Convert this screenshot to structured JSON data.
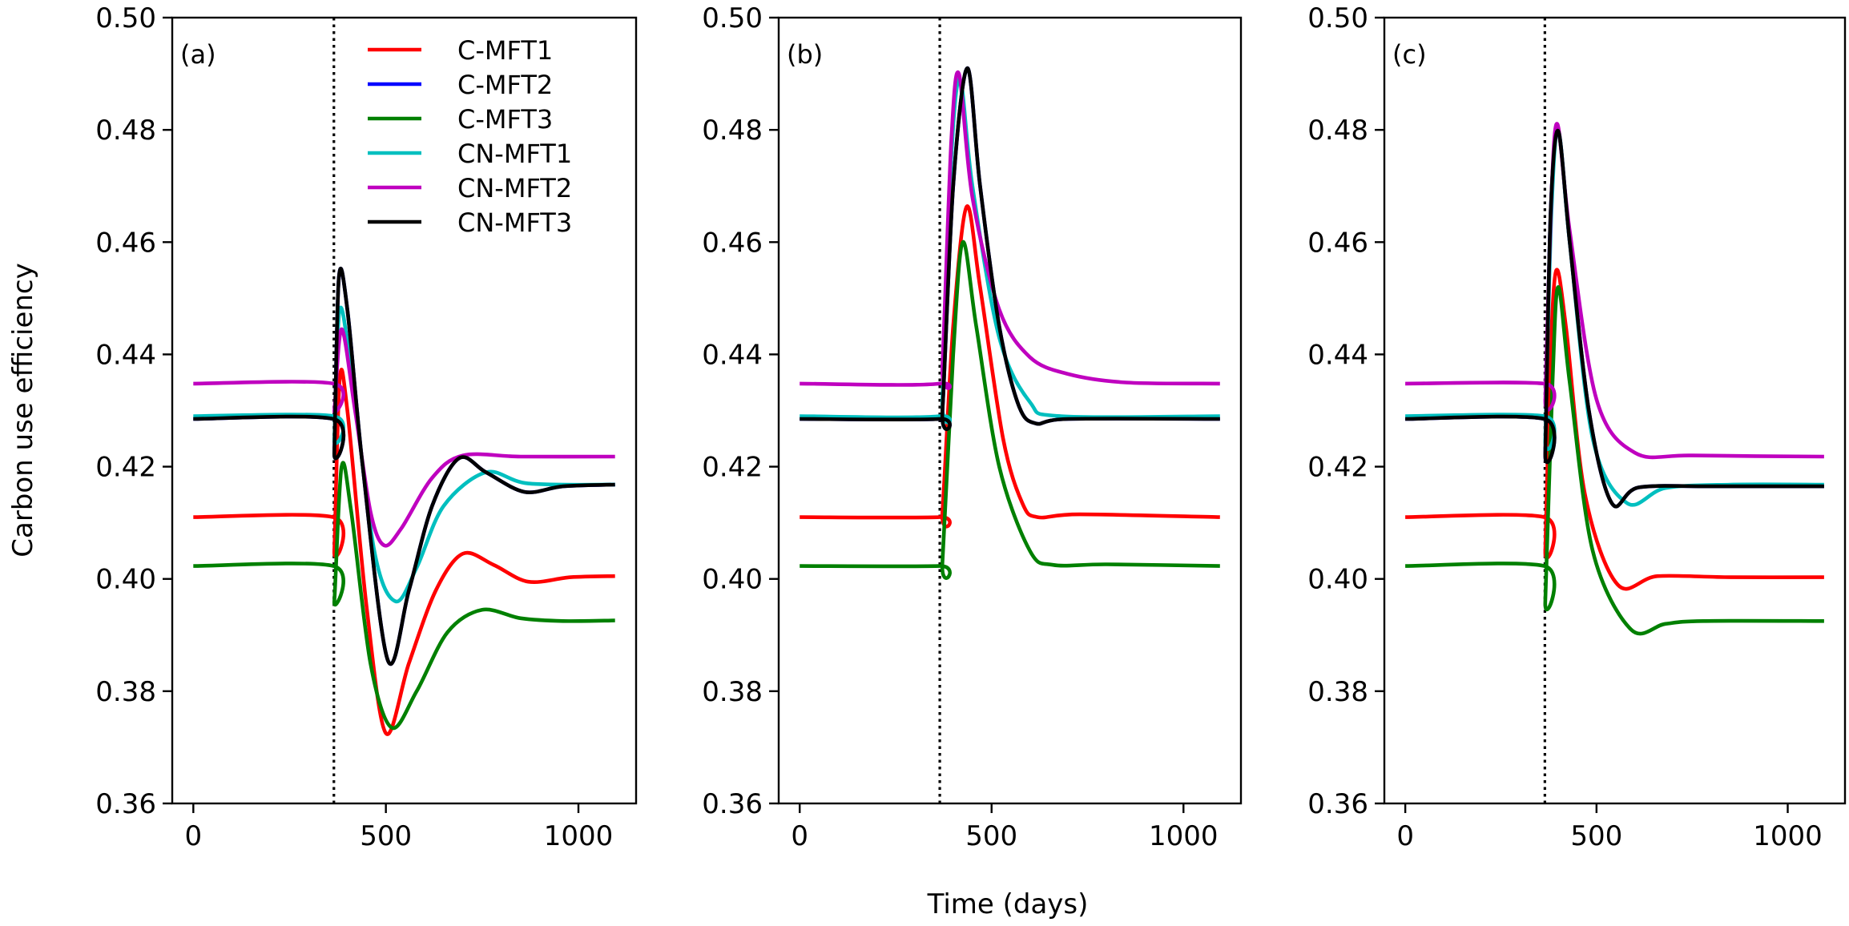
{
  "chart_data": {
    "type": "line",
    "ylabel": "Carbon use efficiency",
    "xlabel": "Time (days)",
    "xlim": [
      -54.75,
      1149.75
    ],
    "ylim": [
      0.36,
      0.5
    ],
    "xticks": [
      0,
      500,
      1000
    ],
    "yticks": [
      0.36,
      0.38,
      0.4,
      0.42,
      0.44,
      0.46,
      0.48,
      0.5
    ],
    "ytick_labels": [
      "0.36",
      "0.38",
      "0.40",
      "0.42",
      "0.44",
      "0.46",
      "0.48",
      "0.50"
    ],
    "xtick_labels": [
      "0",
      "500",
      "1000"
    ],
    "vline_x": 365,
    "grid": false,
    "legend_placement": "top-right (panel a)",
    "legend": [
      {
        "name": "C-MFT1",
        "color": "#ff0000"
      },
      {
        "name": "C-MFT2",
        "color": "#0000ff"
      },
      {
        "name": "C-MFT3",
        "color": "#008000"
      },
      {
        "name": "CN-MFT1",
        "color": "#00bfbf"
      },
      {
        "name": "CN-MFT2",
        "color": "#bf00bf"
      },
      {
        "name": "CN-MFT3",
        "color": "#000000"
      }
    ],
    "panels": [
      {
        "label": "(a)",
        "series": [
          {
            "name": "C-MFT2",
            "color": "#0000ff",
            "points": [
              [
                0,
                0.4285
              ],
              [
                364,
                0.4285
              ],
              [
                366,
                0.4225
              ],
              [
                378,
                0.4537
              ],
              [
                400,
                0.448
              ],
              [
                440,
                0.42
              ],
              [
                505,
                0.3855
              ],
              [
                560,
                0.398
              ],
              [
                620,
                0.413
              ],
              [
                690,
                0.4215
              ],
              [
                760,
                0.419
              ],
              [
                860,
                0.4155
              ],
              [
                960,
                0.4165
              ],
              [
                1095,
                0.4168
              ]
            ]
          },
          {
            "name": "C-MFT1",
            "color": "#ff0000",
            "points": [
              [
                0,
                0.411
              ],
              [
                364,
                0.411
              ],
              [
                366,
                0.405
              ],
              [
                380,
                0.4355
              ],
              [
                400,
                0.43
              ],
              [
                450,
                0.395
              ],
              [
                500,
                0.3725
              ],
              [
                560,
                0.385
              ],
              [
                630,
                0.398
              ],
              [
                700,
                0.4045
              ],
              [
                780,
                0.4025
              ],
              [
                870,
                0.3995
              ],
              [
                980,
                0.4003
              ],
              [
                1095,
                0.4005
              ]
            ]
          },
          {
            "name": "C-MFT3",
            "color": "#008000",
            "points": [
              [
                0,
                0.4023
              ],
              [
                364,
                0.4023
              ],
              [
                366,
                0.396
              ],
              [
                385,
                0.42
              ],
              [
                410,
                0.412
              ],
              [
                460,
                0.385
              ],
              [
                515,
                0.3735
              ],
              [
                580,
                0.38
              ],
              [
                660,
                0.3905
              ],
              [
                750,
                0.3945
              ],
              [
                850,
                0.393
              ],
              [
                960,
                0.3925
              ],
              [
                1095,
                0.3926
              ]
            ]
          },
          {
            "name": "CN-MFT1",
            "color": "#00bfbf",
            "points": [
              [
                0,
                0.429
              ],
              [
                364,
                0.429
              ],
              [
                366,
                0.425
              ],
              [
                380,
                0.448
              ],
              [
                410,
                0.437
              ],
              [
                470,
                0.405
              ],
              [
                525,
                0.396
              ],
              [
                580,
                0.402
              ],
              [
                650,
                0.413
              ],
              [
                760,
                0.419
              ],
              [
                870,
                0.417
              ],
              [
                1095,
                0.4168
              ]
            ]
          },
          {
            "name": "CN-MFT2",
            "color": "#bf00bf",
            "points": [
              [
                0,
                0.4348
              ],
              [
                364,
                0.4348
              ],
              [
                366,
                0.43
              ],
              [
                385,
                0.4445
              ],
              [
                420,
                0.43
              ],
              [
                460,
                0.412
              ],
              [
                495,
                0.406
              ],
              [
                540,
                0.409
              ],
              [
                620,
                0.418
              ],
              [
                700,
                0.422
              ],
              [
                850,
                0.4218
              ],
              [
                1095,
                0.4218
              ]
            ]
          },
          {
            "name": "CN-MFT3",
            "color": "#000000",
            "points": [
              [
                0,
                0.4285
              ],
              [
                364,
                0.4285
              ],
              [
                366,
                0.4225
              ],
              [
                378,
                0.4537
              ],
              [
                400,
                0.448
              ],
              [
                440,
                0.42
              ],
              [
                505,
                0.3855
              ],
              [
                560,
                0.398
              ],
              [
                620,
                0.413
              ],
              [
                690,
                0.4215
              ],
              [
                760,
                0.419
              ],
              [
                860,
                0.4155
              ],
              [
                960,
                0.4165
              ],
              [
                1095,
                0.4168
              ]
            ]
          }
        ]
      },
      {
        "label": "(b)",
        "series": [
          {
            "name": "C-MFT2",
            "color": "#0000ff",
            "points": [
              [
                0,
                0.4285
              ],
              [
                364,
                0.4285
              ],
              [
                372,
                0.43
              ],
              [
                400,
                0.47
              ],
              [
                437,
                0.491
              ],
              [
                470,
                0.47
              ],
              [
                520,
                0.445
              ],
              [
                570,
                0.431
              ],
              [
                615,
                0.4277
              ],
              [
                700,
                0.4285
              ],
              [
                1095,
                0.4285
              ]
            ]
          },
          {
            "name": "C-MFT1",
            "color": "#ff0000",
            "points": [
              [
                0,
                0.411
              ],
              [
                364,
                0.411
              ],
              [
                372,
                0.412
              ],
              [
                400,
                0.445
              ],
              [
                435,
                0.4663
              ],
              [
                470,
                0.452
              ],
              [
                530,
                0.425
              ],
              [
                580,
                0.4135
              ],
              [
                620,
                0.411
              ],
              [
                730,
                0.4115
              ],
              [
                1095,
                0.411
              ]
            ]
          },
          {
            "name": "C-MFT3",
            "color": "#008000",
            "points": [
              [
                0,
                0.4023
              ],
              [
                364,
                0.4023
              ],
              [
                372,
                0.403
              ],
              [
                400,
                0.44
              ],
              [
                425,
                0.46
              ],
              [
                460,
                0.445
              ],
              [
                520,
                0.42
              ],
              [
                600,
                0.405
              ],
              [
                660,
                0.4025
              ],
              [
                800,
                0.4026
              ],
              [
                1095,
                0.4023
              ]
            ]
          },
          {
            "name": "CN-MFT1",
            "color": "#00bfbf",
            "points": [
              [
                0,
                0.429
              ],
              [
                364,
                0.429
              ],
              [
                372,
                0.432
              ],
              [
                395,
                0.475
              ],
              [
                418,
                0.489
              ],
              [
                450,
                0.47
              ],
              [
                520,
                0.443
              ],
              [
                600,
                0.4315
              ],
              [
                680,
                0.429
              ],
              [
                1095,
                0.429
              ]
            ]
          },
          {
            "name": "CN-MFT2",
            "color": "#bf00bf",
            "points": [
              [
                0,
                0.4348
              ],
              [
                364,
                0.4348
              ],
              [
                372,
                0.438
              ],
              [
                395,
                0.478
              ],
              [
                415,
                0.49
              ],
              [
                450,
                0.468
              ],
              [
                520,
                0.448
              ],
              [
                600,
                0.4395
              ],
              [
                700,
                0.4365
              ],
              [
                850,
                0.435
              ],
              [
                1095,
                0.4348
              ]
            ]
          },
          {
            "name": "CN-MFT3",
            "color": "#000000",
            "points": [
              [
                0,
                0.4285
              ],
              [
                364,
                0.4285
              ],
              [
                372,
                0.43
              ],
              [
                400,
                0.47
              ],
              [
                437,
                0.491
              ],
              [
                470,
                0.47
              ],
              [
                520,
                0.445
              ],
              [
                570,
                0.431
              ],
              [
                615,
                0.4277
              ],
              [
                700,
                0.4285
              ],
              [
                1095,
                0.4285
              ]
            ]
          }
        ]
      },
      {
        "label": "(c)",
        "series": [
          {
            "name": "C-MFT2",
            "color": "#0000ff",
            "points": [
              [
                0,
                0.4285
              ],
              [
                364,
                0.4285
              ],
              [
                366,
                0.4225
              ],
              [
                380,
                0.465
              ],
              [
                400,
                0.4798
              ],
              [
                430,
                0.46
              ],
              [
                480,
                0.43
              ],
              [
                540,
                0.4135
              ],
              [
                610,
                0.4163
              ],
              [
                800,
                0.4165
              ],
              [
                1095,
                0.4165
              ]
            ]
          },
          {
            "name": "C-MFT1",
            "color": "#ff0000",
            "points": [
              [
                0,
                0.411
              ],
              [
                364,
                0.411
              ],
              [
                366,
                0.405
              ],
              [
                380,
                0.44
              ],
              [
                395,
                0.455
              ],
              [
                420,
                0.445
              ],
              [
                470,
                0.415
              ],
              [
                555,
                0.399
              ],
              [
                660,
                0.4005
              ],
              [
                850,
                0.4003
              ],
              [
                1095,
                0.4003
              ]
            ]
          },
          {
            "name": "C-MFT3",
            "color": "#008000",
            "points": [
              [
                0,
                0.4023
              ],
              [
                364,
                0.4023
              ],
              [
                366,
                0.396
              ],
              [
                385,
                0.435
              ],
              [
                400,
                0.452
              ],
              [
                430,
                0.435
              ],
              [
                490,
                0.405
              ],
              [
                590,
                0.391
              ],
              [
                680,
                0.392
              ],
              [
                780,
                0.3925
              ],
              [
                1095,
                0.3925
              ]
            ]
          },
          {
            "name": "CN-MFT1",
            "color": "#00bfbf",
            "points": [
              [
                0,
                0.429
              ],
              [
                364,
                0.429
              ],
              [
                366,
                0.425
              ],
              [
                382,
                0.465
              ],
              [
                400,
                0.48
              ],
              [
                430,
                0.46
              ],
              [
                490,
                0.425
              ],
              [
                580,
                0.4135
              ],
              [
                680,
                0.4162
              ],
              [
                850,
                0.4168
              ],
              [
                1095,
                0.4168
              ]
            ]
          },
          {
            "name": "CN-MFT2",
            "color": "#bf00bf",
            "points": [
              [
                0,
                0.4348
              ],
              [
                364,
                0.4348
              ],
              [
                366,
                0.432
              ],
              [
                382,
                0.468
              ],
              [
                398,
                0.481
              ],
              [
                430,
                0.462
              ],
              [
                500,
                0.432
              ],
              [
                600,
                0.4225
              ],
              [
                750,
                0.422
              ],
              [
                1095,
                0.4218
              ]
            ]
          },
          {
            "name": "CN-MFT3",
            "color": "#000000",
            "points": [
              [
                0,
                0.4285
              ],
              [
                364,
                0.4285
              ],
              [
                366,
                0.4225
              ],
              [
                380,
                0.465
              ],
              [
                400,
                0.4798
              ],
              [
                430,
                0.46
              ],
              [
                480,
                0.43
              ],
              [
                540,
                0.4135
              ],
              [
                610,
                0.4163
              ],
              [
                800,
                0.4165
              ],
              [
                1095,
                0.4165
              ]
            ]
          }
        ]
      }
    ]
  }
}
